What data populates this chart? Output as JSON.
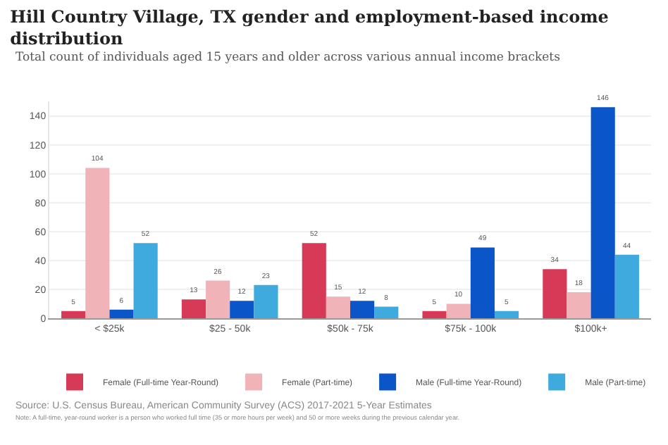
{
  "chart_data": {
    "type": "bar",
    "title": "Hill Country Village, TX gender and employment-based income distribution",
    "subtitle": "Total count of individuals aged 15 years and older across various annual income brackets",
    "categories": [
      "< $25k",
      "$25 - 50k",
      "$50k - 75k",
      "$75k - 100k",
      "$100k+"
    ],
    "series": [
      {
        "name": "Female (Full-time Year-Round)",
        "color": "#d63a56",
        "values": [
          5,
          13,
          52,
          5,
          34
        ]
      },
      {
        "name": "Female (Part-time)",
        "color": "#f0b3b8",
        "values": [
          104,
          26,
          15,
          10,
          18
        ]
      },
      {
        "name": "Male (Full-time Year-Round)",
        "color": "#0a56c8",
        "values": [
          6,
          12,
          12,
          49,
          146
        ]
      },
      {
        "name": "Male (Part-time)",
        "color": "#3eaade",
        "values": [
          52,
          23,
          8,
          5,
          44
        ]
      }
    ],
    "ylim": [
      0,
      150
    ],
    "yticks": [
      0,
      20,
      40,
      60,
      80,
      100,
      120,
      140
    ],
    "grid": "y",
    "legend": "bottom",
    "data_labels": true,
    "annotations": [
      "Source: U.S. Census Bureau, American Community Survey (ACS) 2017-2021 5-Year Estimates",
      "Note: A full-time, year-round worker is a person who worked full time (35 or more hours per week) and 50 or more weeks during the previous calendar year."
    ]
  }
}
